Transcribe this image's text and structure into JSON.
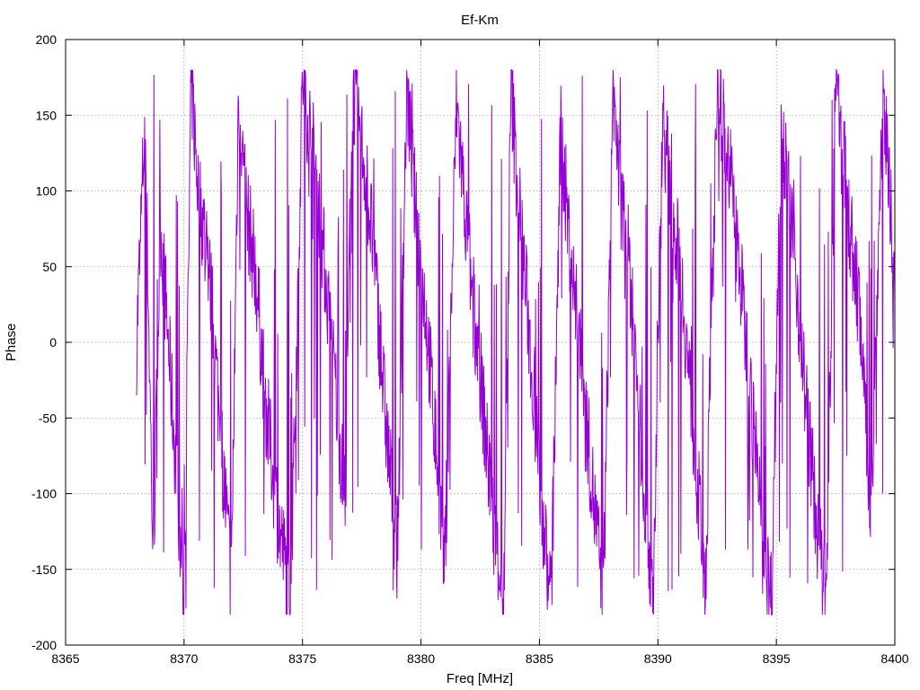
{
  "chart_data": {
    "type": "line",
    "title": "Ef-Km",
    "xlabel": "Freq [MHz]",
    "ylabel": "Phase",
    "xlim": [
      8365,
      8400
    ],
    "ylim": [
      -200,
      200
    ],
    "x_ticks": [
      8365,
      8370,
      8375,
      8380,
      8385,
      8390,
      8395,
      8400
    ],
    "y_ticks": [
      -200,
      -150,
      -100,
      -50,
      0,
      50,
      100,
      150,
      200
    ],
    "x_tick_labels": [
      "8365",
      "8370",
      "8375",
      "8380",
      "8385",
      "8390",
      "8395",
      "8400"
    ],
    "y_tick_labels": [
      "-200",
      "-150",
      "-100",
      "-50",
      "0",
      "50",
      "100",
      "150",
      "200"
    ],
    "grid": true,
    "legend": false,
    "series": [
      {
        "color": "#9400d3",
        "x_start": 8368.0,
        "x_end": 8400.0,
        "x": [
          8368.0,
          8368.35,
          8368.7,
          8369.0,
          8369.5,
          8370.0,
          8370.3,
          8370.6,
          8371.0,
          8371.5,
          8372.0,
          8372.3,
          8372.6,
          8373.0,
          8373.5,
          8374.0,
          8374.5,
          8374.8,
          8375.0,
          8375.5,
          8376.0,
          8376.5,
          8376.8,
          8377.1,
          8377.6,
          8378.0,
          8378.5,
          8379.0,
          8379.4,
          8379.8,
          8380.2,
          8380.6,
          8381.0,
          8381.5,
          8382.0,
          8382.5,
          8383.0,
          8383.5,
          8383.8,
          8384.0,
          8384.5,
          8385.0,
          8385.5,
          8385.9,
          8386.3,
          8386.8,
          8387.2,
          8387.7,
          8388.1,
          8388.4,
          8388.8,
          8389.3,
          8389.8,
          8390.2,
          8390.6,
          8391.0,
          8391.5,
          8392.0,
          8392.5,
          8393.0,
          8393.5,
          8394.0,
          8394.4,
          8394.8,
          8395.2,
          8395.7,
          8396.2,
          8396.7,
          8397.1,
          8397.5,
          8398.0,
          8398.5,
          8399.0,
          8399.5,
          8399.8,
          8400.0
        ],
        "y": [
          0,
          150,
          -150,
          80,
          -40,
          -175,
          175,
          100,
          60,
          -50,
          -160,
          170,
          90,
          50,
          -50,
          -120,
          -170,
          30,
          175,
          120,
          40,
          -50,
          -110,
          170,
          120,
          60,
          -50,
          -140,
          170,
          80,
          20,
          -60,
          -150,
          160,
          60,
          -20,
          -110,
          -170,
          170,
          120,
          20,
          -90,
          -170,
          140,
          60,
          -20,
          -90,
          -170,
          170,
          100,
          50,
          -70,
          -170,
          150,
          90,
          40,
          -60,
          -160,
          170,
          120,
          40,
          -50,
          -130,
          -170,
          150,
          70,
          -30,
          -120,
          -175,
          170,
          90,
          20,
          -110,
          170,
          100,
          20
        ]
      }
    ]
  }
}
